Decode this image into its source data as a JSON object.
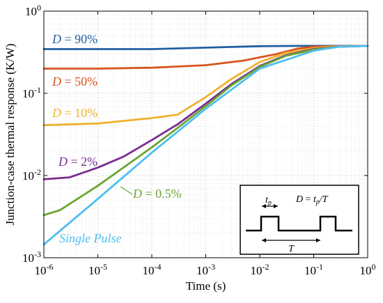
{
  "chart_data": {
    "type": "line",
    "xlabel": "Time (s)",
    "ylabel": "Junction-case thermal response (K/W)",
    "xscale": "log",
    "yscale": "log",
    "xlim": [
      1e-06,
      1
    ],
    "ylim": [
      0.001,
      1
    ],
    "grid": true,
    "x_ticks": [
      {
        "base": "10",
        "exp": "-6"
      },
      {
        "base": "10",
        "exp": "-5"
      },
      {
        "base": "10",
        "exp": "-4"
      },
      {
        "base": "10",
        "exp": "-3"
      },
      {
        "base": "10",
        "exp": "-2"
      },
      {
        "base": "10",
        "exp": "-1"
      },
      {
        "base": "10",
        "exp": "0"
      }
    ],
    "y_ticks": [
      {
        "base": "10",
        "exp": "-3"
      },
      {
        "base": "10",
        "exp": "-2"
      },
      {
        "base": "10",
        "exp": "-1"
      },
      {
        "base": "10",
        "exp": "0"
      }
    ],
    "series": [
      {
        "name_var": "D",
        "name_rest": " = 90%",
        "color": "#1f5fa0",
        "points": [
          [
            1e-06,
            0.345
          ],
          [
            0.0001,
            0.345
          ],
          [
            0.001,
            0.36
          ],
          [
            0.01,
            0.375
          ],
          [
            0.05,
            0.378
          ],
          [
            1,
            0.378
          ]
        ]
      },
      {
        "name_var": "D",
        "name_rest": " = 50%",
        "color": "#d9531f",
        "points": [
          [
            1e-06,
            0.2
          ],
          [
            1e-05,
            0.2
          ],
          [
            0.0001,
            0.205
          ],
          [
            0.001,
            0.22
          ],
          [
            0.005,
            0.25
          ],
          [
            0.02,
            0.3
          ],
          [
            0.05,
            0.35
          ],
          [
            0.1,
            0.37
          ],
          [
            1,
            0.378
          ]
        ]
      },
      {
        "name_var": "D",
        "name_rest": " = 10%",
        "color": "#eeb22e",
        "points": [
          [
            1e-06,
            0.041
          ],
          [
            1e-05,
            0.043
          ],
          [
            0.0001,
            0.05
          ],
          [
            0.0003,
            0.055
          ],
          [
            0.001,
            0.09
          ],
          [
            0.003,
            0.15
          ],
          [
            0.01,
            0.24
          ],
          [
            0.03,
            0.31
          ],
          [
            0.1,
            0.355
          ],
          [
            0.2,
            0.37
          ],
          [
            1,
            0.378
          ]
        ]
      },
      {
        "name_var": "D",
        "name_rest": " = 2%",
        "color": "#7b2b90",
        "points": [
          [
            1e-06,
            0.009
          ],
          [
            3e-06,
            0.0095
          ],
          [
            1e-05,
            0.0125
          ],
          [
            3e-05,
            0.017
          ],
          [
            0.0001,
            0.027
          ],
          [
            0.0003,
            0.042
          ],
          [
            0.001,
            0.075
          ],
          [
            0.003,
            0.13
          ],
          [
            0.01,
            0.215
          ],
          [
            0.03,
            0.29
          ],
          [
            0.1,
            0.345
          ],
          [
            0.3,
            0.37
          ],
          [
            1,
            0.378
          ]
        ]
      },
      {
        "name_var": "D",
        "name_rest": " = 0.5%",
        "color": "#6aa532",
        "points": [
          [
            1e-06,
            0.0033
          ],
          [
            2e-06,
            0.0038
          ],
          [
            1e-05,
            0.0075
          ],
          [
            0.0001,
            0.022
          ],
          [
            0.0003,
            0.038
          ],
          [
            0.001,
            0.07
          ],
          [
            0.003,
            0.125
          ],
          [
            0.01,
            0.21
          ],
          [
            0.03,
            0.285
          ],
          [
            0.1,
            0.34
          ],
          [
            0.3,
            0.37
          ],
          [
            1,
            0.378
          ]
        ]
      },
      {
        "name_var": "",
        "name_rest": "Single Pulse",
        "color": "#4dbeee",
        "points": [
          [
            1e-06,
            0.00145
          ],
          [
            1e-05,
            0.0052
          ],
          [
            0.0001,
            0.019
          ],
          [
            0.001,
            0.065
          ],
          [
            0.01,
            0.2
          ],
          [
            0.1,
            0.33
          ],
          [
            0.3,
            0.37
          ],
          [
            1,
            0.378
          ]
        ]
      }
    ]
  },
  "inset": {
    "tp_var": "t",
    "tp_sub": "p",
    "formula_var": "D",
    "formula_eq": " = ",
    "formula_t": "t",
    "formula_sub": "p",
    "formula_rest": "/T",
    "period_label": "T"
  }
}
